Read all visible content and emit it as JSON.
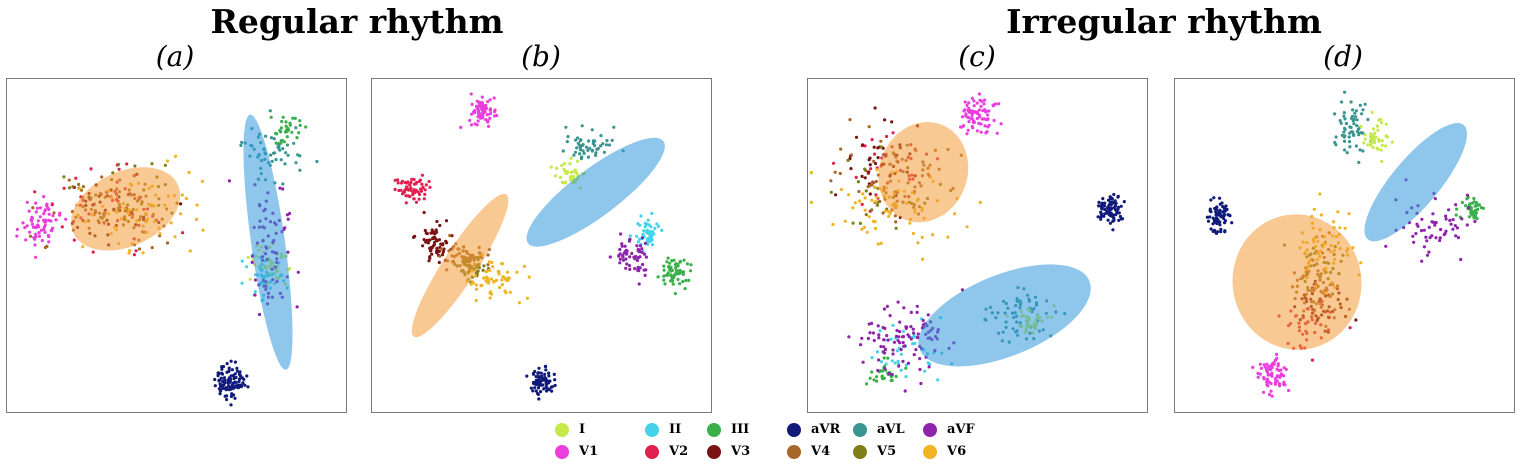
{
  "titles": {
    "regular": "Regular rhythm",
    "irregular": "Irregular rhythm"
  },
  "legend": [
    {
      "label": "I",
      "color": "#c5e84b"
    },
    {
      "label": "II",
      "color": "#45d3ea"
    },
    {
      "label": "III",
      "color": "#3ab04a"
    },
    {
      "label": "aVR",
      "color": "#101a7a"
    },
    {
      "label": "aVL",
      "color": "#3a9590"
    },
    {
      "label": "aVF",
      "color": "#8e24aa"
    },
    {
      "label": "V1",
      "color": "#ea3fdc"
    },
    {
      "label": "V2",
      "color": "#e0214f"
    },
    {
      "label": "V3",
      "color": "#7a1414"
    },
    {
      "label": "V4",
      "color": "#a86628"
    },
    {
      "label": "V5",
      "color": "#7f7f17"
    },
    {
      "label": "V6",
      "color": "#f0b422"
    }
  ],
  "chart_data": [
    {
      "type": "scatter",
      "title": "(a)",
      "group": "Regular rhythm",
      "axes": "hidden",
      "clusters": [
        {
          "series": "V1",
          "center": [
            0.1,
            0.43
          ],
          "spread": [
            0.04,
            0.05
          ],
          "count": 70
        },
        {
          "series": "V2",
          "center": [
            0.3,
            0.4
          ],
          "spread": [
            0.14,
            0.08
          ],
          "count": 50
        },
        {
          "series": "V3",
          "center": [
            0.31,
            0.39
          ],
          "spread": [
            0.14,
            0.08
          ],
          "count": 40
        },
        {
          "series": "V4",
          "center": [
            0.32,
            0.41
          ],
          "spread": [
            0.15,
            0.09
          ],
          "count": 60
        },
        {
          "series": "V5",
          "center": [
            0.36,
            0.35
          ],
          "spread": [
            0.12,
            0.08
          ],
          "count": 30
        },
        {
          "series": "V6",
          "center": [
            0.38,
            0.4
          ],
          "spread": [
            0.14,
            0.09
          ],
          "count": 60
        },
        {
          "series": "aVL",
          "center": [
            0.78,
            0.22
          ],
          "spread": [
            0.06,
            0.06
          ],
          "count": 60
        },
        {
          "series": "III",
          "center": [
            0.83,
            0.15
          ],
          "spread": [
            0.03,
            0.03
          ],
          "count": 30
        },
        {
          "series": "I",
          "center": [
            0.78,
            0.56
          ],
          "spread": [
            0.04,
            0.04
          ],
          "count": 50
        },
        {
          "series": "II",
          "center": [
            0.76,
            0.6
          ],
          "spread": [
            0.04,
            0.05
          ],
          "count": 40
        },
        {
          "series": "aVF",
          "center": [
            0.77,
            0.5
          ],
          "spread": [
            0.05,
            0.15
          ],
          "count": 70
        },
        {
          "series": "aVR",
          "center": [
            0.66,
            0.91
          ],
          "spread": [
            0.035,
            0.035
          ],
          "count": 100
        }
      ],
      "regions": [
        {
          "color": "#f39c39",
          "center": [
            0.35,
            0.39
          ],
          "radii": [
            0.17,
            0.11
          ],
          "angle": -25
        },
        {
          "color": "#3399dd",
          "center": [
            0.77,
            0.49
          ],
          "radii": [
            0.38,
            0.05
          ],
          "angle": 82
        }
      ]
    },
    {
      "type": "scatter",
      "title": "(b)",
      "group": "Regular rhythm",
      "axes": "hidden",
      "clusters": [
        {
          "series": "V1",
          "center": [
            0.32,
            0.09
          ],
          "spread": [
            0.03,
            0.03
          ],
          "count": 70
        },
        {
          "series": "V2",
          "center": [
            0.12,
            0.33
          ],
          "spread": [
            0.03,
            0.03
          ],
          "count": 60
        },
        {
          "series": "V3",
          "center": [
            0.18,
            0.49
          ],
          "spread": [
            0.03,
            0.04
          ],
          "count": 70
        },
        {
          "series": "V4",
          "center": [
            0.28,
            0.54
          ],
          "spread": [
            0.05,
            0.04
          ],
          "count": 60
        },
        {
          "series": "V5",
          "center": [
            0.3,
            0.57
          ],
          "spread": [
            0.04,
            0.03
          ],
          "count": 40
        },
        {
          "series": "V6",
          "center": [
            0.36,
            0.6
          ],
          "spread": [
            0.06,
            0.04
          ],
          "count": 60
        },
        {
          "series": "aVL",
          "center": [
            0.64,
            0.2
          ],
          "spread": [
            0.05,
            0.04
          ],
          "count": 50
        },
        {
          "series": "I",
          "center": [
            0.58,
            0.28
          ],
          "spread": [
            0.03,
            0.03
          ],
          "count": 40
        },
        {
          "series": "II",
          "center": [
            0.81,
            0.47
          ],
          "spread": [
            0.03,
            0.03
          ],
          "count": 50
        },
        {
          "series": "aVF",
          "center": [
            0.77,
            0.53
          ],
          "spread": [
            0.04,
            0.04
          ],
          "count": 60
        },
        {
          "series": "III",
          "center": [
            0.89,
            0.58
          ],
          "spread": [
            0.035,
            0.03
          ],
          "count": 60
        },
        {
          "series": "aVR",
          "center": [
            0.5,
            0.91
          ],
          "spread": [
            0.025,
            0.025
          ],
          "count": 70
        }
      ],
      "regions": [
        {
          "color": "#f39c39",
          "center": [
            0.26,
            0.56
          ],
          "radii": [
            0.25,
            0.05
          ],
          "angle": -57
        },
        {
          "color": "#3399dd",
          "center": [
            0.66,
            0.34
          ],
          "radii": [
            0.25,
            0.07
          ],
          "angle": -37
        }
      ]
    },
    {
      "type": "scatter",
      "title": "(c)",
      "group": "Irregular rhythm",
      "axes": "hidden",
      "clusters": [
        {
          "series": "V1",
          "center": [
            0.5,
            0.11
          ],
          "spread": [
            0.04,
            0.04
          ],
          "count": 80
        },
        {
          "series": "V2",
          "center": [
            0.23,
            0.25
          ],
          "spread": [
            0.09,
            0.1
          ],
          "count": 40
        },
        {
          "series": "V3",
          "center": [
            0.22,
            0.24
          ],
          "spread": [
            0.1,
            0.1
          ],
          "count": 40
        },
        {
          "series": "V4",
          "center": [
            0.26,
            0.3
          ],
          "spread": [
            0.12,
            0.1
          ],
          "count": 60
        },
        {
          "series": "V5",
          "center": [
            0.24,
            0.35
          ],
          "spread": [
            0.12,
            0.08
          ],
          "count": 30
        },
        {
          "series": "V6",
          "center": [
            0.25,
            0.38
          ],
          "spread": [
            0.15,
            0.09
          ],
          "count": 70
        },
        {
          "series": "aVR",
          "center": [
            0.89,
            0.39
          ],
          "spread": [
            0.035,
            0.03
          ],
          "count": 80
        },
        {
          "series": "aVL",
          "center": [
            0.62,
            0.7
          ],
          "spread": [
            0.07,
            0.06
          ],
          "count": 60
        },
        {
          "series": "I",
          "center": [
            0.66,
            0.73
          ],
          "spread": [
            0.04,
            0.03
          ],
          "count": 40
        },
        {
          "series": "III",
          "center": [
            0.23,
            0.88
          ],
          "spread": [
            0.03,
            0.03
          ],
          "count": 30
        },
        {
          "series": "II",
          "center": [
            0.3,
            0.8
          ],
          "spread": [
            0.08,
            0.06
          ],
          "count": 40
        },
        {
          "series": "aVF",
          "center": [
            0.3,
            0.77
          ],
          "spread": [
            0.1,
            0.08
          ],
          "count": 100
        }
      ],
      "regions": [
        {
          "color": "#f39c39",
          "center": [
            0.34,
            0.28
          ],
          "radii": [
            0.15,
            0.13
          ],
          "angle": -70
        },
        {
          "color": "#3399dd",
          "center": [
            0.58,
            0.71
          ],
          "radii": [
            0.27,
            0.12
          ],
          "angle": -22
        }
      ]
    },
    {
      "type": "scatter",
      "title": "(d)",
      "group": "Irregular rhythm",
      "axes": "hidden",
      "clusters": [
        {
          "series": "aVR",
          "center": [
            0.13,
            0.41
          ],
          "spread": [
            0.025,
            0.035
          ],
          "count": 70
        },
        {
          "series": "aVL",
          "center": [
            0.52,
            0.15
          ],
          "spread": [
            0.04,
            0.06
          ],
          "count": 60
        },
        {
          "series": "I",
          "center": [
            0.59,
            0.18
          ],
          "spread": [
            0.03,
            0.04
          ],
          "count": 40
        },
        {
          "series": "III",
          "center": [
            0.88,
            0.39
          ],
          "spread": [
            0.025,
            0.03
          ],
          "count": 40
        },
        {
          "series": "aVF",
          "center": [
            0.78,
            0.46
          ],
          "spread": [
            0.07,
            0.07
          ],
          "count": 60
        },
        {
          "series": "V1",
          "center": [
            0.29,
            0.89
          ],
          "spread": [
            0.03,
            0.035
          ],
          "count": 70
        },
        {
          "series": "V2",
          "center": [
            0.4,
            0.74
          ],
          "spread": [
            0.06,
            0.06
          ],
          "count": 40
        },
        {
          "series": "V3",
          "center": [
            0.43,
            0.68
          ],
          "spread": [
            0.06,
            0.06
          ],
          "count": 40
        },
        {
          "series": "V4",
          "center": [
            0.42,
            0.62
          ],
          "spread": [
            0.06,
            0.08
          ],
          "count": 60
        },
        {
          "series": "V5",
          "center": [
            0.43,
            0.55
          ],
          "spread": [
            0.05,
            0.06
          ],
          "count": 30
        },
        {
          "series": "V6",
          "center": [
            0.44,
            0.5
          ],
          "spread": [
            0.06,
            0.09
          ],
          "count": 60
        }
      ],
      "regions": [
        {
          "color": "#f39c39",
          "center": [
            0.36,
            0.61
          ],
          "radii": [
            0.19,
            0.2
          ],
          "angle": -10
        },
        {
          "color": "#3399dd",
          "center": [
            0.71,
            0.31
          ],
          "radii": [
            0.22,
            0.07
          ],
          "angle": -50
        }
      ]
    }
  ]
}
